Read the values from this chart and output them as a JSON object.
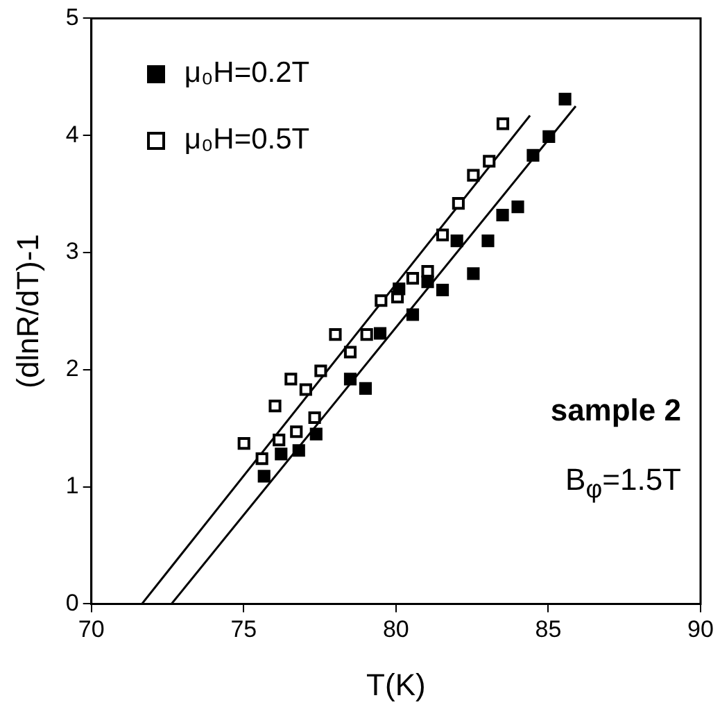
{
  "chart_data": {
    "type": "scatter",
    "xlabel": "T(K)",
    "ylabel": "(dlnR/dT)-1",
    "xlim": [
      70,
      90
    ],
    "xticks": [
      70,
      75,
      80,
      85,
      90
    ],
    "ylim": [
      0,
      5
    ],
    "yticks": [
      0,
      1,
      2,
      3,
      4,
      5
    ],
    "grid": false,
    "legend": "top left",
    "annotations": [
      "sample 2",
      "B$_{φ}$=1.5T"
    ],
    "series": [
      {
        "name": "μ₀H=0.2T",
        "color": "#000000",
        "marker": "square",
        "x": [
          75.67,
          76.23,
          76.81,
          77.38,
          78.5,
          79.0,
          79.48,
          80.1,
          80.55,
          81.04,
          81.53,
          82.0,
          82.54,
          83.02,
          83.5,
          84.0,
          84.5,
          85.02,
          85.55
        ],
        "values": [
          1.09,
          1.28,
          1.31,
          1.45,
          1.92,
          1.84,
          2.31,
          2.69,
          2.47,
          2.75,
          2.68,
          3.1,
          2.82,
          3.1,
          3.32,
          3.39,
          3.83,
          3.99,
          4.31
        ]
      },
      {
        "name": "μ₀H=0.5T",
        "color": "#000000",
        "marker": "square-open",
        "x": [
          75.01,
          75.6,
          76.16,
          76.03,
          76.73,
          76.55,
          77.33,
          77.04,
          77.53,
          78.01,
          78.5,
          79.04,
          79.51,
          80.05,
          80.55,
          81.04,
          81.53,
          82.05,
          82.54,
          83.06,
          83.51
        ],
        "values": [
          1.37,
          1.24,
          1.4,
          1.69,
          1.47,
          1.92,
          1.59,
          1.83,
          1.99,
          2.3,
          2.15,
          2.3,
          2.59,
          2.62,
          2.78,
          2.84,
          3.15,
          3.42,
          3.66,
          3.78,
          4.1
        ]
      },
      {
        "type": "line",
        "color": "#000000",
        "marker": "none",
        "x": [
          72.63,
          85.9
        ],
        "values": [
          0,
          4.25
        ]
      },
      {
        "type": "line",
        "color": "#000000",
        "marker": "none",
        "x": [
          71.66,
          84.4
        ],
        "values": [
          0,
          4.17
        ]
      }
    ]
  }
}
